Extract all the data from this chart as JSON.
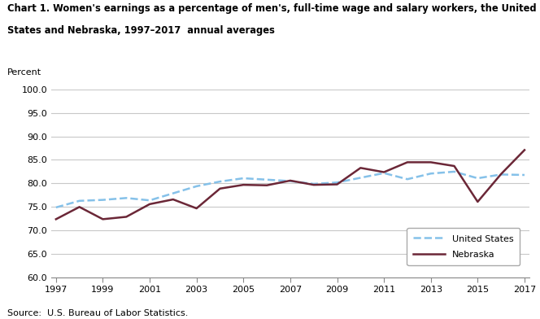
{
  "years": [
    1997,
    1998,
    1999,
    2000,
    2001,
    2002,
    2003,
    2004,
    2005,
    2006,
    2007,
    2008,
    2009,
    2010,
    2011,
    2012,
    2013,
    2014,
    2015,
    2016,
    2017
  ],
  "us_values": [
    74.9,
    76.3,
    76.5,
    76.9,
    76.4,
    77.9,
    79.4,
    80.4,
    81.1,
    80.8,
    80.5,
    79.9,
    80.2,
    81.2,
    82.2,
    80.9,
    82.1,
    82.5,
    81.1,
    81.9,
    81.8
  ],
  "ne_values": [
    72.4,
    75.0,
    72.4,
    72.9,
    75.6,
    76.6,
    74.7,
    78.9,
    79.7,
    79.6,
    80.6,
    79.7,
    79.8,
    83.3,
    82.4,
    84.5,
    84.5,
    83.7,
    76.1,
    82.0,
    87.1
  ],
  "us_color": "#85C1E9",
  "ne_color": "#6B2737",
  "title_line1": "Chart 1. Women's earnings as a percentage of men's, full-time wage and salary workers, the United",
  "title_line2": "States and Nebraska, 1997–2017  annual averages",
  "ylabel": "Percent",
  "ylim": [
    60.0,
    100.0
  ],
  "yticks": [
    60.0,
    65.0,
    70.0,
    75.0,
    80.0,
    85.0,
    90.0,
    95.0,
    100.0
  ],
  "xlim": [
    1997,
    2017
  ],
  "xticks": [
    1997,
    1999,
    2001,
    2003,
    2005,
    2007,
    2009,
    2011,
    2013,
    2015,
    2017
  ],
  "source": "Source:  U.S. Bureau of Labor Statistics.",
  "legend_us": "United States",
  "legend_ne": "Nebraska",
  "background_color": "#ffffff",
  "grid_color": "#c8c8c8"
}
